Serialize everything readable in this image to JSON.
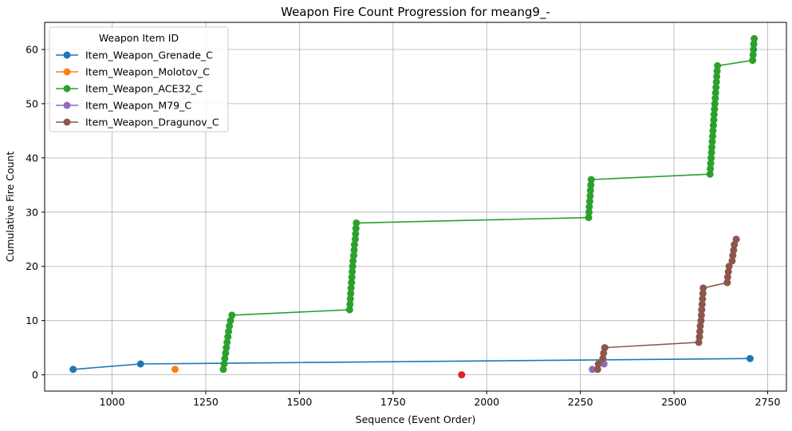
{
  "chart_data": {
    "type": "line",
    "title": "Weapon Fire Count Progression for meang9_-",
    "xlabel": "Sequence (Event Order)",
    "ylabel": "Cumulative Fire Count",
    "xlim": [
      820,
      2800
    ],
    "ylim": [
      -3,
      65
    ],
    "xticks": [
      1000,
      1250,
      1500,
      1750,
      2000,
      2250,
      2500,
      2750
    ],
    "yticks": [
      0,
      10,
      20,
      30,
      40,
      50,
      60
    ],
    "grid": true,
    "legend": {
      "title": "Weapon Item ID",
      "placement": "top-left"
    },
    "series": [
      {
        "name": "Item_Weapon_Grenade_C",
        "color": "#1f77b4",
        "points": [
          [
            896,
            1
          ],
          [
            1076,
            2
          ],
          [
            2703,
            3
          ]
        ]
      },
      {
        "name": "Item_Weapon_Molotov_C",
        "color": "#ff7f0e",
        "points": [
          [
            1168,
            1
          ]
        ]
      },
      {
        "name": "Item_Weapon_ACE32_C",
        "color": "#2ca02c",
        "points": [
          [
            1297,
            1
          ],
          [
            1299,
            2
          ],
          [
            1301,
            3
          ],
          [
            1303,
            4
          ],
          [
            1305,
            5
          ],
          [
            1307,
            6
          ],
          [
            1309,
            7
          ],
          [
            1311,
            8
          ],
          [
            1313,
            9
          ],
          [
            1316,
            10
          ],
          [
            1320,
            11
          ],
          [
            1634,
            12
          ],
          [
            1635,
            13
          ],
          [
            1636,
            14
          ],
          [
            1637,
            15
          ],
          [
            1638,
            16
          ],
          [
            1639,
            17
          ],
          [
            1640,
            18
          ],
          [
            1641,
            19
          ],
          [
            1642,
            20
          ],
          [
            1643,
            21
          ],
          [
            1645,
            22
          ],
          [
            1646,
            23
          ],
          [
            1647,
            24
          ],
          [
            1649,
            25
          ],
          [
            1650,
            26
          ],
          [
            1651,
            27
          ],
          [
            1652,
            28
          ],
          [
            2272,
            29
          ],
          [
            2273,
            30
          ],
          [
            2274,
            31
          ],
          [
            2275,
            32
          ],
          [
            2276,
            33
          ],
          [
            2277,
            34
          ],
          [
            2278,
            35
          ],
          [
            2279,
            36
          ],
          [
            2596,
            37
          ],
          [
            2597,
            38
          ],
          [
            2598,
            39
          ],
          [
            2599,
            40
          ],
          [
            2600,
            41
          ],
          [
            2601,
            42
          ],
          [
            2602,
            43
          ],
          [
            2603,
            44
          ],
          [
            2604,
            45
          ],
          [
            2605,
            46
          ],
          [
            2606,
            47
          ],
          [
            2607,
            48
          ],
          [
            2608,
            49
          ],
          [
            2609,
            50
          ],
          [
            2610,
            51
          ],
          [
            2611,
            52
          ],
          [
            2612,
            53
          ],
          [
            2613,
            54
          ],
          [
            2614,
            55
          ],
          [
            2615,
            56
          ],
          [
            2616,
            57
          ],
          [
            2710,
            58
          ],
          [
            2711,
            59
          ],
          [
            2712,
            60
          ],
          [
            2713,
            61
          ],
          [
            2714,
            62
          ]
        ]
      },
      {
        "name": "Item_Weapon_M79_C",
        "color": "#9467bd",
        "points": [
          [
            2282,
            1
          ],
          [
            2313,
            2
          ]
        ]
      },
      {
        "name": "Item_Weapon_Dragunov_C",
        "color": "#8c564b",
        "points": [
          [
            2296,
            1
          ],
          [
            2298,
            2
          ],
          [
            2310,
            3
          ],
          [
            2312,
            4
          ],
          [
            2315,
            5
          ],
          [
            2566,
            6
          ],
          [
            2568,
            7
          ],
          [
            2569,
            8
          ],
          [
            2570,
            9
          ],
          [
            2572,
            10
          ],
          [
            2573,
            11
          ],
          [
            2574,
            12
          ],
          [
            2575,
            13
          ],
          [
            2576,
            14
          ],
          [
            2577,
            15
          ],
          [
            2578,
            16
          ],
          [
            2642,
            17
          ],
          [
            2643,
            18
          ],
          [
            2645,
            19
          ],
          [
            2647,
            20
          ],
          [
            2655,
            21
          ],
          [
            2657,
            22
          ],
          [
            2659,
            23
          ],
          [
            2661,
            24
          ],
          [
            2666,
            25
          ]
        ]
      }
    ],
    "extra_points": [
      {
        "color": "#d62728",
        "points": [
          [
            1933,
            0
          ]
        ]
      }
    ]
  }
}
